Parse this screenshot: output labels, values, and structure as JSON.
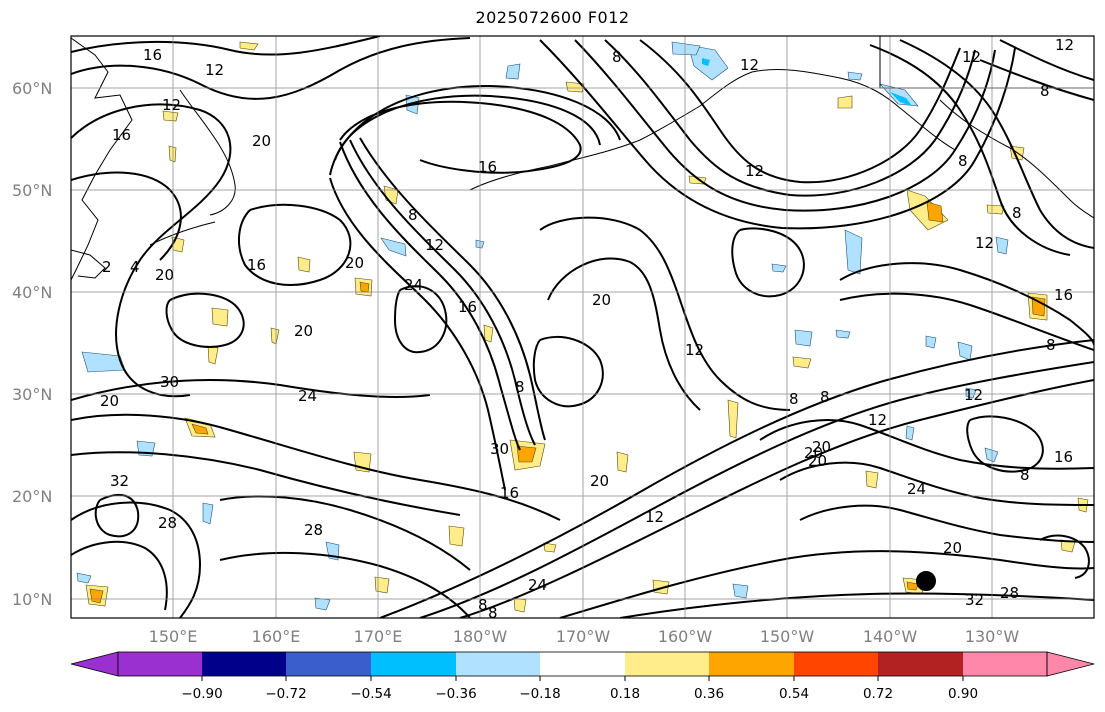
{
  "title": "2025072600 F012",
  "map": {
    "lat_labels": [
      "60°N",
      "50°N",
      "40°N",
      "30°N",
      "20°N",
      "10°N"
    ],
    "lon_labels": [
      "150°E",
      "160°E",
      "170°E",
      "180°W",
      "170°W",
      "160°W",
      "150°W",
      "140°W",
      "130°W"
    ],
    "contour_labels": [
      "16",
      "12",
      "12",
      "16",
      "20",
      "8",
      "12",
      "12",
      "12",
      "12",
      "8",
      "16",
      "12",
      "8",
      "8",
      "12",
      "8",
      "8",
      "16",
      "20",
      "2",
      "4",
      "20",
      "24",
      "16",
      "20",
      "12",
      "8",
      "20",
      "16",
      "12",
      "30",
      "20",
      "24",
      "8",
      "8",
      "12",
      "16",
      "30",
      "20",
      "20",
      "24",
      "8",
      "32",
      "16",
      "20",
      "12",
      "28",
      "28",
      "20",
      "8",
      "24",
      "8",
      "32",
      "28",
      "20"
    ],
    "grid": true,
    "coastline_color": "#000000"
  },
  "colorbar": {
    "labels": [
      "−0.90",
      "−0.72",
      "−0.54",
      "−0.36",
      "−0.18",
      "0.18",
      "0.36",
      "0.54",
      "0.72",
      "0.90"
    ],
    "colors": [
      "#9b30d0",
      "#00008b",
      "#3a5fcd",
      "#00bfff",
      "#b0e2ff",
      "#ffffff",
      "#ffec8b",
      "#ffa500",
      "#ff4500",
      "#b22222",
      "#ff88aa"
    ],
    "extend": "both"
  },
  "colors": {
    "negative_fill": "#87cefa",
    "positive_fill_low": "#ffec8b",
    "positive_fill_mid": "#ffa500",
    "contour": "#000000",
    "gridline": "#888888"
  }
}
